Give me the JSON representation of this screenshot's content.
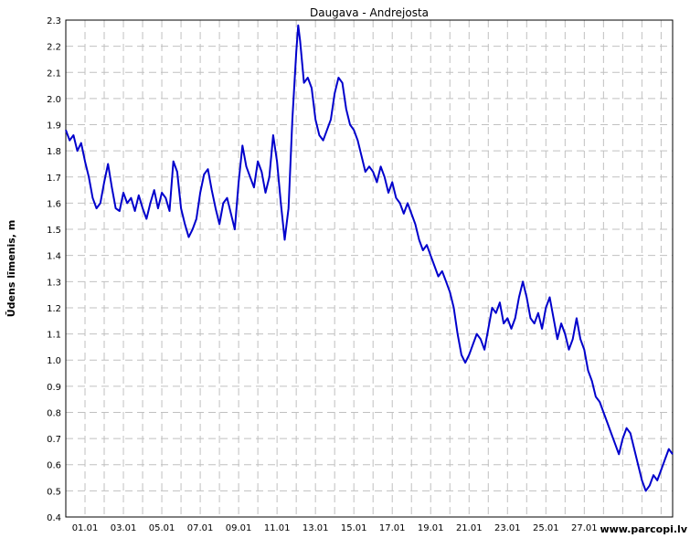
{
  "chart_data": {
    "type": "line",
    "title": "Daugava - Andrejosta",
    "ylabel": "Ūdens līmenis, m",
    "xlabel": "",
    "ylim": [
      0.4,
      2.3
    ],
    "yticks": [
      "0.4",
      "0.5",
      "0.6",
      "0.7",
      "0.8",
      "0.9",
      "1.0",
      "1.1",
      "1.2",
      "1.3",
      "1.4",
      "1.5",
      "1.6",
      "1.7",
      "1.8",
      "1.9",
      "2.0",
      "2.1",
      "2.2",
      "2.3"
    ],
    "xlim_days": [
      0,
      31.6
    ],
    "xticks": [
      {
        "label": "01.01",
        "day": 1
      },
      {
        "label": "03.01",
        "day": 3
      },
      {
        "label": "05.01",
        "day": 5
      },
      {
        "label": "07.01",
        "day": 7
      },
      {
        "label": "09.01",
        "day": 9
      },
      {
        "label": "11.01",
        "day": 11
      },
      {
        "label": "13.01",
        "day": 13
      },
      {
        "label": "15.01",
        "day": 15
      },
      {
        "label": "17.01",
        "day": 17
      },
      {
        "label": "19.01",
        "day": 19
      },
      {
        "label": "21.01",
        "day": 21
      },
      {
        "label": "23.01",
        "day": 23
      },
      {
        "label": "25.01",
        "day": 25
      },
      {
        "label": "27.01",
        "day": 27
      }
    ],
    "grid": true,
    "line_color": "#0000cc",
    "series": [
      {
        "name": "",
        "points": [
          [
            0.0,
            1.88
          ],
          [
            0.2,
            1.84
          ],
          [
            0.4,
            1.86
          ],
          [
            0.6,
            1.8
          ],
          [
            0.8,
            1.83
          ],
          [
            1.0,
            1.76
          ],
          [
            1.2,
            1.7
          ],
          [
            1.4,
            1.62
          ],
          [
            1.6,
            1.58
          ],
          [
            1.8,
            1.6
          ],
          [
            2.0,
            1.68
          ],
          [
            2.2,
            1.75
          ],
          [
            2.4,
            1.66
          ],
          [
            2.6,
            1.58
          ],
          [
            2.8,
            1.57
          ],
          [
            3.0,
            1.64
          ],
          [
            3.2,
            1.6
          ],
          [
            3.4,
            1.62
          ],
          [
            3.6,
            1.57
          ],
          [
            3.8,
            1.63
          ],
          [
            4.0,
            1.58
          ],
          [
            4.2,
            1.54
          ],
          [
            4.4,
            1.6
          ],
          [
            4.6,
            1.65
          ],
          [
            4.8,
            1.58
          ],
          [
            5.0,
            1.64
          ],
          [
            5.2,
            1.62
          ],
          [
            5.4,
            1.57
          ],
          [
            5.6,
            1.76
          ],
          [
            5.8,
            1.72
          ],
          [
            6.0,
            1.58
          ],
          [
            6.2,
            1.52
          ],
          [
            6.4,
            1.47
          ],
          [
            6.6,
            1.5
          ],
          [
            6.8,
            1.54
          ],
          [
            7.0,
            1.64
          ],
          [
            7.2,
            1.71
          ],
          [
            7.4,
            1.73
          ],
          [
            7.6,
            1.65
          ],
          [
            7.8,
            1.58
          ],
          [
            8.0,
            1.52
          ],
          [
            8.2,
            1.6
          ],
          [
            8.4,
            1.62
          ],
          [
            8.6,
            1.56
          ],
          [
            8.8,
            1.5
          ],
          [
            9.0,
            1.68
          ],
          [
            9.2,
            1.82
          ],
          [
            9.4,
            1.74
          ],
          [
            9.6,
            1.7
          ],
          [
            9.8,
            1.66
          ],
          [
            10.0,
            1.76
          ],
          [
            10.2,
            1.72
          ],
          [
            10.4,
            1.64
          ],
          [
            10.6,
            1.7
          ],
          [
            10.8,
            1.86
          ],
          [
            11.0,
            1.76
          ],
          [
            11.2,
            1.6
          ],
          [
            11.4,
            1.46
          ],
          [
            11.6,
            1.58
          ],
          [
            11.8,
            1.92
          ],
          [
            12.0,
            2.18
          ],
          [
            12.1,
            2.28
          ],
          [
            12.2,
            2.22
          ],
          [
            12.4,
            2.06
          ],
          [
            12.6,
            2.08
          ],
          [
            12.8,
            2.04
          ],
          [
            13.0,
            1.92
          ],
          [
            13.2,
            1.86
          ],
          [
            13.4,
            1.84
          ],
          [
            13.6,
            1.88
          ],
          [
            13.8,
            1.92
          ],
          [
            14.0,
            2.02
          ],
          [
            14.2,
            2.08
          ],
          [
            14.4,
            2.06
          ],
          [
            14.6,
            1.96
          ],
          [
            14.8,
            1.9
          ],
          [
            15.0,
            1.88
          ],
          [
            15.2,
            1.84
          ],
          [
            15.4,
            1.78
          ],
          [
            15.6,
            1.72
          ],
          [
            15.8,
            1.74
          ],
          [
            16.0,
            1.72
          ],
          [
            16.2,
            1.68
          ],
          [
            16.4,
            1.74
          ],
          [
            16.6,
            1.7
          ],
          [
            16.8,
            1.64
          ],
          [
            17.0,
            1.68
          ],
          [
            17.2,
            1.62
          ],
          [
            17.4,
            1.6
          ],
          [
            17.6,
            1.56
          ],
          [
            17.8,
            1.6
          ],
          [
            18.0,
            1.56
          ],
          [
            18.2,
            1.52
          ],
          [
            18.4,
            1.46
          ],
          [
            18.6,
            1.42
          ],
          [
            18.8,
            1.44
          ],
          [
            19.0,
            1.4
          ],
          [
            19.2,
            1.36
          ],
          [
            19.4,
            1.32
          ],
          [
            19.6,
            1.34
          ],
          [
            19.8,
            1.3
          ],
          [
            20.0,
            1.26
          ],
          [
            20.2,
            1.2
          ],
          [
            20.4,
            1.1
          ],
          [
            20.6,
            1.02
          ],
          [
            20.8,
            0.99
          ],
          [
            21.0,
            1.02
          ],
          [
            21.2,
            1.06
          ],
          [
            21.4,
            1.1
          ],
          [
            21.6,
            1.08
          ],
          [
            21.8,
            1.04
          ],
          [
            22.0,
            1.12
          ],
          [
            22.2,
            1.2
          ],
          [
            22.4,
            1.18
          ],
          [
            22.6,
            1.22
          ],
          [
            22.8,
            1.14
          ],
          [
            23.0,
            1.16
          ],
          [
            23.2,
            1.12
          ],
          [
            23.4,
            1.16
          ],
          [
            23.6,
            1.24
          ],
          [
            23.8,
            1.3
          ],
          [
            24.0,
            1.24
          ],
          [
            24.2,
            1.16
          ],
          [
            24.4,
            1.14
          ],
          [
            24.6,
            1.18
          ],
          [
            24.8,
            1.12
          ],
          [
            25.0,
            1.2
          ],
          [
            25.2,
            1.24
          ],
          [
            25.4,
            1.16
          ],
          [
            25.6,
            1.08
          ],
          [
            25.8,
            1.14
          ],
          [
            26.0,
            1.1
          ],
          [
            26.2,
            1.04
          ],
          [
            26.4,
            1.08
          ],
          [
            26.6,
            1.16
          ],
          [
            26.8,
            1.08
          ],
          [
            27.0,
            1.04
          ],
          [
            27.2,
            0.96
          ],
          [
            27.4,
            0.92
          ],
          [
            27.6,
            0.86
          ],
          [
            27.8,
            0.84
          ],
          [
            28.0,
            0.8
          ],
          [
            28.2,
            0.76
          ],
          [
            28.4,
            0.72
          ],
          [
            28.6,
            0.68
          ],
          [
            28.8,
            0.64
          ],
          [
            29.0,
            0.7
          ],
          [
            29.2,
            0.74
          ],
          [
            29.4,
            0.72
          ],
          [
            29.6,
            0.66
          ],
          [
            29.8,
            0.6
          ],
          [
            30.0,
            0.54
          ],
          [
            30.2,
            0.5
          ],
          [
            30.4,
            0.52
          ],
          [
            30.6,
            0.56
          ],
          [
            30.8,
            0.54
          ],
          [
            31.0,
            0.58
          ],
          [
            31.2,
            0.62
          ],
          [
            31.4,
            0.66
          ],
          [
            31.6,
            0.64
          ]
        ]
      }
    ]
  },
  "watermark": "www.parcopi.lv"
}
